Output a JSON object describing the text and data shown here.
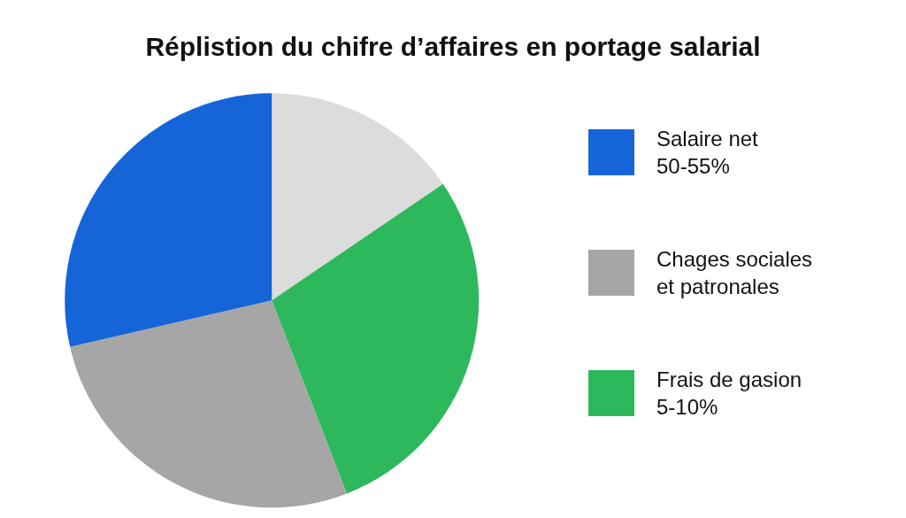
{
  "chart_data": {
    "type": "pie",
    "title": "Réplistion du chifre d’affaires en portage salarial",
    "categories": [
      null,
      "Frais de gasion\n5-10%",
      "Chages sociales\net patronales",
      "Salaire net\n50-55%"
    ],
    "values": [
      15.5,
      28.6,
      27.3,
      28.6
    ],
    "colors": [
      "#dcdcdc",
      "#2db85c",
      "#a6a6a6",
      "#1565d8"
    ],
    "legend": "right"
  }
}
